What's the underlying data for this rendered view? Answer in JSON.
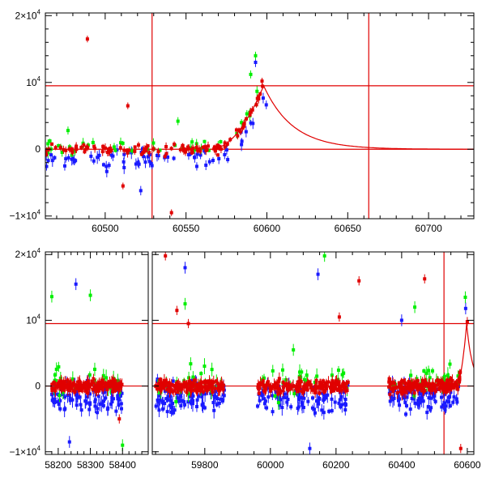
{
  "chart_data": [
    {
      "type": "scatter",
      "panel": "top",
      "title": "",
      "xlabel": "",
      "ylabel": "",
      "xlim": [
        60463,
        60728
      ],
      "ylim": [
        -10400,
        20400
      ],
      "grid": false,
      "x_ticks": [
        60500,
        60550,
        60600,
        60650,
        60700
      ],
      "x_tick_labels": [
        "60500",
        "60550",
        "60600",
        "60650",
        "60700"
      ],
      "y_ticks": [
        -10000,
        0,
        10000,
        20000
      ],
      "y_tick_labels": [
        {
          "base": "−1×10",
          "exp": "4"
        },
        {
          "base": "0",
          "exp": ""
        },
        {
          "base": "10",
          "exp": "4"
        },
        {
          "base": "2×10",
          "exp": "4"
        }
      ],
      "ref_lines": {
        "vertical": [
          60529,
          60663
        ],
        "horizontal": [
          0,
          9500
        ]
      },
      "model_curve": {
        "color": "#e00000",
        "rise_start": 60565,
        "peak_x": 60598,
        "peak_y": 9500,
        "decay_tau": 18
      },
      "series": [
        {
          "color": "#1a1aff",
          "x_range": [
            60463,
            60600
          ],
          "base": -1500,
          "scatter": 1500,
          "count": 70,
          "error": 700,
          "highlights": [
            [
              60593,
              13000
            ],
            [
              60522,
              -6200
            ],
            [
              60475,
              -2500
            ]
          ]
        },
        {
          "color": "#00ee00",
          "x_range": [
            60463,
            60598
          ],
          "base": 300,
          "scatter": 1100,
          "count": 45,
          "error": 600,
          "highlights": [
            [
              60593,
              14000
            ],
            [
              60590,
              11200
            ],
            [
              60477,
              2800
            ],
            [
              60545,
              4200
            ]
          ]
        },
        {
          "color": "#e00000",
          "x_range": [
            60463,
            60600
          ],
          "base": 0,
          "scatter": 700,
          "count": 120,
          "error": 500,
          "highlights": [
            [
              60489,
              16500
            ],
            [
              60514,
              6500
            ],
            [
              60541,
              -9500
            ],
            [
              60511,
              -5500
            ],
            [
              60597,
              10200
            ]
          ]
        }
      ]
    },
    {
      "type": "scatter",
      "panel": "bottom",
      "title": "",
      "xlabel": "",
      "ylabel": "",
      "ylim": [
        -10400,
        20400
      ],
      "grid": false,
      "segments": [
        {
          "range": [
            58160,
            58480
          ],
          "ticks": [
            58200,
            58300,
            58400
          ],
          "tick_labels": [
            "58200",
            "58300",
            "58400"
          ]
        },
        {
          "range": [
            59640,
            60620
          ],
          "ticks": [
            59800,
            60000,
            60200,
            60400,
            60600
          ],
          "tick_labels": [
            "59800",
            "60000",
            "60200",
            "60400",
            "60600"
          ]
        }
      ],
      "y_ticks": [
        -10000,
        0,
        10000,
        20000
      ],
      "y_tick_labels": [
        {
          "base": "−1×10",
          "exp": "4"
        },
        {
          "base": "0",
          "exp": ""
        },
        {
          "base": "10",
          "exp": "4"
        },
        {
          "base": "2×10",
          "exp": "4"
        }
      ],
      "ref_lines": {
        "vertical": [
          60529
        ],
        "horizontal": [
          0,
          9500
        ]
      },
      "model_curve": {
        "color": "#e00000",
        "rise_start": 60565,
        "peak_x": 60598,
        "peak_y": 9500,
        "decay_tau": 18
      },
      "seasons": [
        {
          "x_range": [
            58180,
            58400
          ]
        },
        {
          "x_range": [
            59650,
            59860
          ]
        },
        {
          "x_range": [
            59960,
            60240
          ]
        },
        {
          "x_range": [
            60360,
            60580
          ]
        }
      ],
      "series": [
        {
          "color": "#1a1aff",
          "base": -1800,
          "scatter": 2200,
          "count_per_season": 90,
          "error": 900,
          "highlights": [
            [
              58255,
              15500
            ],
            [
              58235,
              -8500
            ],
            [
              59740,
              18000
            ],
            [
              60145,
              17000
            ],
            [
              60400,
              10000
            ],
            [
              60120,
              -9500
            ],
            [
              60595,
              11800
            ]
          ]
        },
        {
          "color": "#00ee00",
          "base": 500,
          "scatter": 2200,
          "count_per_season": 30,
          "error": 900,
          "highlights": [
            [
              58180,
              13600
            ],
            [
              58300,
              13800
            ],
            [
              59740,
              12500
            ],
            [
              60165,
              19800
            ],
            [
              60070,
              5500
            ],
            [
              60440,
              12000
            ],
            [
              58400,
              -9000
            ],
            [
              60594,
              13500
            ]
          ]
        },
        {
          "color": "#e00000",
          "base": 0,
          "scatter": 900,
          "count_per_season": 170,
          "error": 700,
          "highlights": [
            [
              59680,
              19800
            ],
            [
              59715,
              11500
            ],
            [
              60210,
              10500
            ],
            [
              60270,
              16000
            ],
            [
              60470,
              16300
            ],
            [
              60580,
              -9500
            ],
            [
              58390,
              -5000
            ],
            [
              59750,
              9500
            ],
            [
              60600,
              9800
            ]
          ]
        }
      ]
    }
  ]
}
